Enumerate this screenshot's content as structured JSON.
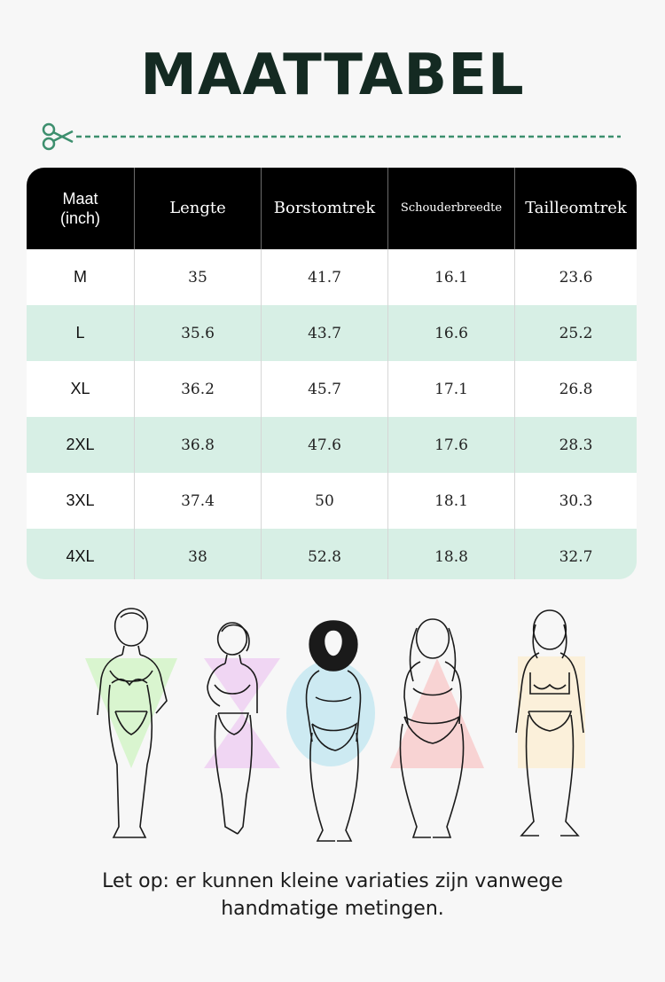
{
  "title": "MAATTABEL",
  "table": {
    "headers": [
      "Maat\n(inch)",
      "Lengte",
      "Borstomtrek",
      "Schouderbreedte",
      "Tailleomtrek"
    ],
    "rows": [
      [
        "M",
        "35",
        "41.7",
        "16.1",
        "23.6"
      ],
      [
        "L",
        "35.6",
        "43.7",
        "16.6",
        "25.2"
      ],
      [
        "XL",
        "36.2",
        "45.7",
        "17.1",
        "26.8"
      ],
      [
        "2XL",
        "36.8",
        "47.6",
        "17.6",
        "28.3"
      ],
      [
        "3XL",
        "37.4",
        "50",
        "18.1",
        "30.3"
      ],
      [
        "4XL",
        "38",
        "52.8",
        "18.8",
        "32.7"
      ]
    ]
  },
  "body_shapes": [
    {
      "shape": "inverted-triangle",
      "color": "#d9f5cf"
    },
    {
      "shape": "hourglass",
      "color": "#f0d6f3"
    },
    {
      "shape": "oval",
      "color": "#cdeaf2"
    },
    {
      "shape": "triangle",
      "color": "#f8d3d3"
    },
    {
      "shape": "rectangle",
      "color": "#fbf0da"
    }
  ],
  "colors": {
    "title": "#142a22",
    "accent": "#3d8f6e",
    "header_bg": "#000000",
    "row_alt": "#d7efe5"
  },
  "note": {
    "line1": "Let op: er kunnen kleine variaties zijn vanwege",
    "line2": "handmatige metingen."
  }
}
